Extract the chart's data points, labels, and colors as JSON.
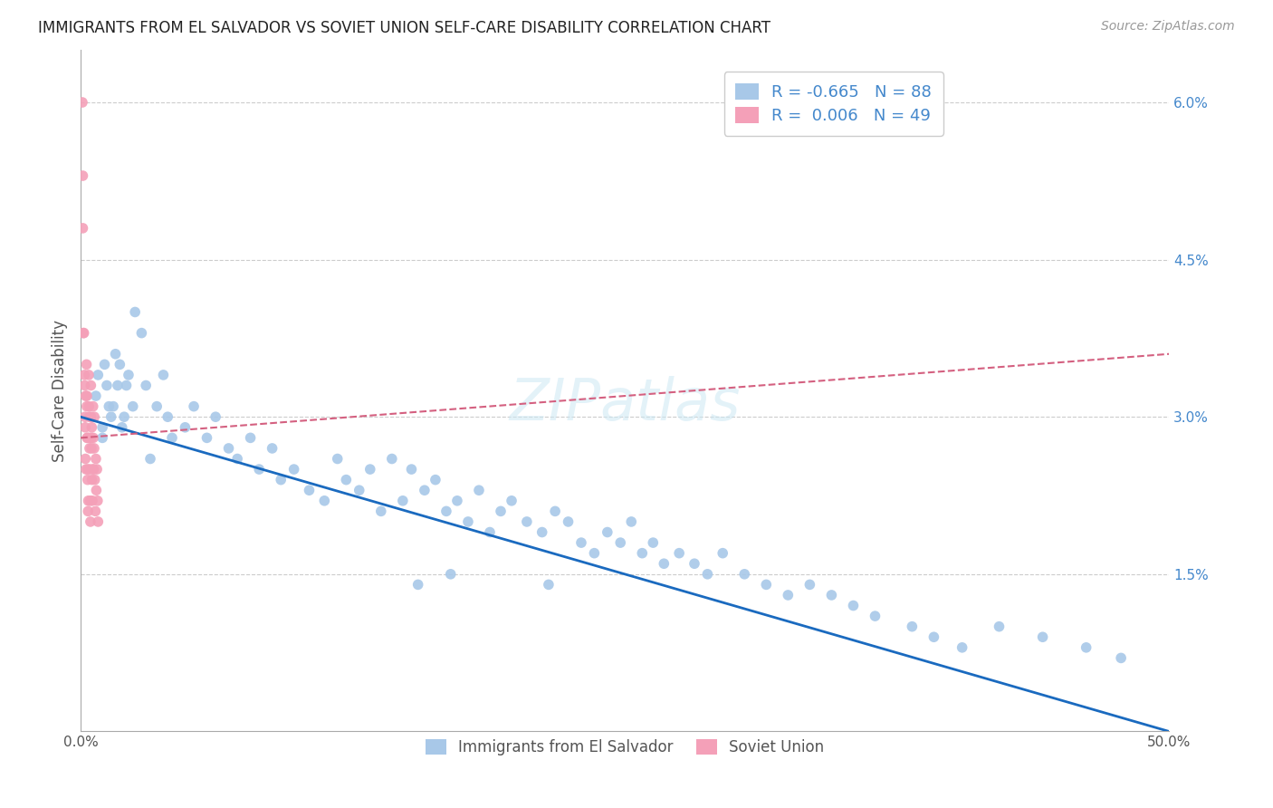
{
  "title": "IMMIGRANTS FROM EL SALVADOR VS SOVIET UNION SELF-CARE DISABILITY CORRELATION CHART",
  "source": "Source: ZipAtlas.com",
  "ylabel": "Self-Care Disability",
  "xlim": [
    0.0,
    0.5
  ],
  "ylim": [
    0.0,
    0.065
  ],
  "xtick_positions": [
    0.0,
    0.1,
    0.2,
    0.3,
    0.4,
    0.5
  ],
  "xtick_labels": [
    "0.0%",
    "",
    "",
    "",
    "",
    "50.0%"
  ],
  "ytick_positions": [
    0.0,
    0.015,
    0.03,
    0.045,
    0.06
  ],
  "ytick_labels_right": [
    "",
    "1.5%",
    "3.0%",
    "4.5%",
    "6.0%"
  ],
  "el_salvador_R": -0.665,
  "el_salvador_N": 88,
  "soviet_union_R": 0.006,
  "soviet_union_N": 49,
  "el_salvador_color": "#a8c8e8",
  "soviet_union_color": "#f4a0b8",
  "el_salvador_line_color": "#1a6abf",
  "soviet_union_line_color": "#d46080",
  "watermark": "ZIPatlas",
  "legend_labels": [
    "Immigrants from El Salvador",
    "Soviet Union"
  ],
  "es_line_x0": 0.0,
  "es_line_x1": 0.5,
  "es_line_y0": 0.03,
  "es_line_y1": 0.0,
  "su_line_x0": 0.0,
  "su_line_x1": 0.5,
  "su_line_y0": 0.028,
  "su_line_y1": 0.036,
  "es_x": [
    0.007,
    0.01,
    0.012,
    0.014,
    0.008,
    0.015,
    0.018,
    0.02,
    0.01,
    0.013,
    0.016,
    0.021,
    0.025,
    0.011,
    0.017,
    0.022,
    0.028,
    0.019,
    0.024,
    0.03,
    0.035,
    0.032,
    0.04,
    0.038,
    0.042,
    0.048,
    0.052,
    0.058,
    0.062,
    0.068,
    0.072,
    0.078,
    0.082,
    0.088,
    0.092,
    0.098,
    0.105,
    0.112,
    0.118,
    0.122,
    0.128,
    0.133,
    0.138,
    0.143,
    0.148,
    0.152,
    0.158,
    0.163,
    0.168,
    0.173,
    0.178,
    0.183,
    0.188,
    0.193,
    0.198,
    0.205,
    0.212,
    0.218,
    0.224,
    0.23,
    0.236,
    0.242,
    0.248,
    0.253,
    0.258,
    0.263,
    0.268,
    0.275,
    0.282,
    0.288,
    0.295,
    0.305,
    0.315,
    0.325,
    0.335,
    0.345,
    0.355,
    0.365,
    0.382,
    0.392,
    0.405,
    0.422,
    0.442,
    0.462,
    0.478,
    0.155,
    0.17,
    0.215
  ],
  "es_y": [
    0.032,
    0.028,
    0.033,
    0.03,
    0.034,
    0.031,
    0.035,
    0.03,
    0.029,
    0.031,
    0.036,
    0.033,
    0.04,
    0.035,
    0.033,
    0.034,
    0.038,
    0.029,
    0.031,
    0.033,
    0.031,
    0.026,
    0.03,
    0.034,
    0.028,
    0.029,
    0.031,
    0.028,
    0.03,
    0.027,
    0.026,
    0.028,
    0.025,
    0.027,
    0.024,
    0.025,
    0.023,
    0.022,
    0.026,
    0.024,
    0.023,
    0.025,
    0.021,
    0.026,
    0.022,
    0.025,
    0.023,
    0.024,
    0.021,
    0.022,
    0.02,
    0.023,
    0.019,
    0.021,
    0.022,
    0.02,
    0.019,
    0.021,
    0.02,
    0.018,
    0.017,
    0.019,
    0.018,
    0.02,
    0.017,
    0.018,
    0.016,
    0.017,
    0.016,
    0.015,
    0.017,
    0.015,
    0.014,
    0.013,
    0.014,
    0.013,
    0.012,
    0.011,
    0.01,
    0.009,
    0.008,
    0.01,
    0.009,
    0.008,
    0.007,
    0.014,
    0.015,
    0.014
  ],
  "su_x": [
    0.0008,
    0.001,
    0.0012,
    0.001,
    0.0015,
    0.0018,
    0.002,
    0.0022,
    0.0019,
    0.0021,
    0.0025,
    0.0023,
    0.0028,
    0.003,
    0.0027,
    0.0032,
    0.0034,
    0.0029,
    0.0031,
    0.0033,
    0.0035,
    0.0038,
    0.004,
    0.0037,
    0.0042,
    0.0039,
    0.0044,
    0.0041,
    0.0045,
    0.0048,
    0.005,
    0.0047,
    0.0052,
    0.0049,
    0.0054,
    0.0051,
    0.0056,
    0.0058,
    0.006,
    0.0057,
    0.0062,
    0.0065,
    0.0068,
    0.0063,
    0.007,
    0.0072,
    0.0075,
    0.0078,
    0.008
  ],
  "su_y": [
    0.06,
    0.048,
    0.038,
    0.053,
    0.038,
    0.034,
    0.03,
    0.026,
    0.033,
    0.029,
    0.025,
    0.032,
    0.031,
    0.028,
    0.035,
    0.024,
    0.021,
    0.032,
    0.028,
    0.025,
    0.022,
    0.031,
    0.028,
    0.034,
    0.025,
    0.03,
    0.022,
    0.027,
    0.02,
    0.03,
    0.027,
    0.033,
    0.024,
    0.028,
    0.022,
    0.029,
    0.025,
    0.028,
    0.025,
    0.031,
    0.027,
    0.024,
    0.021,
    0.03,
    0.026,
    0.023,
    0.025,
    0.022,
    0.02
  ]
}
